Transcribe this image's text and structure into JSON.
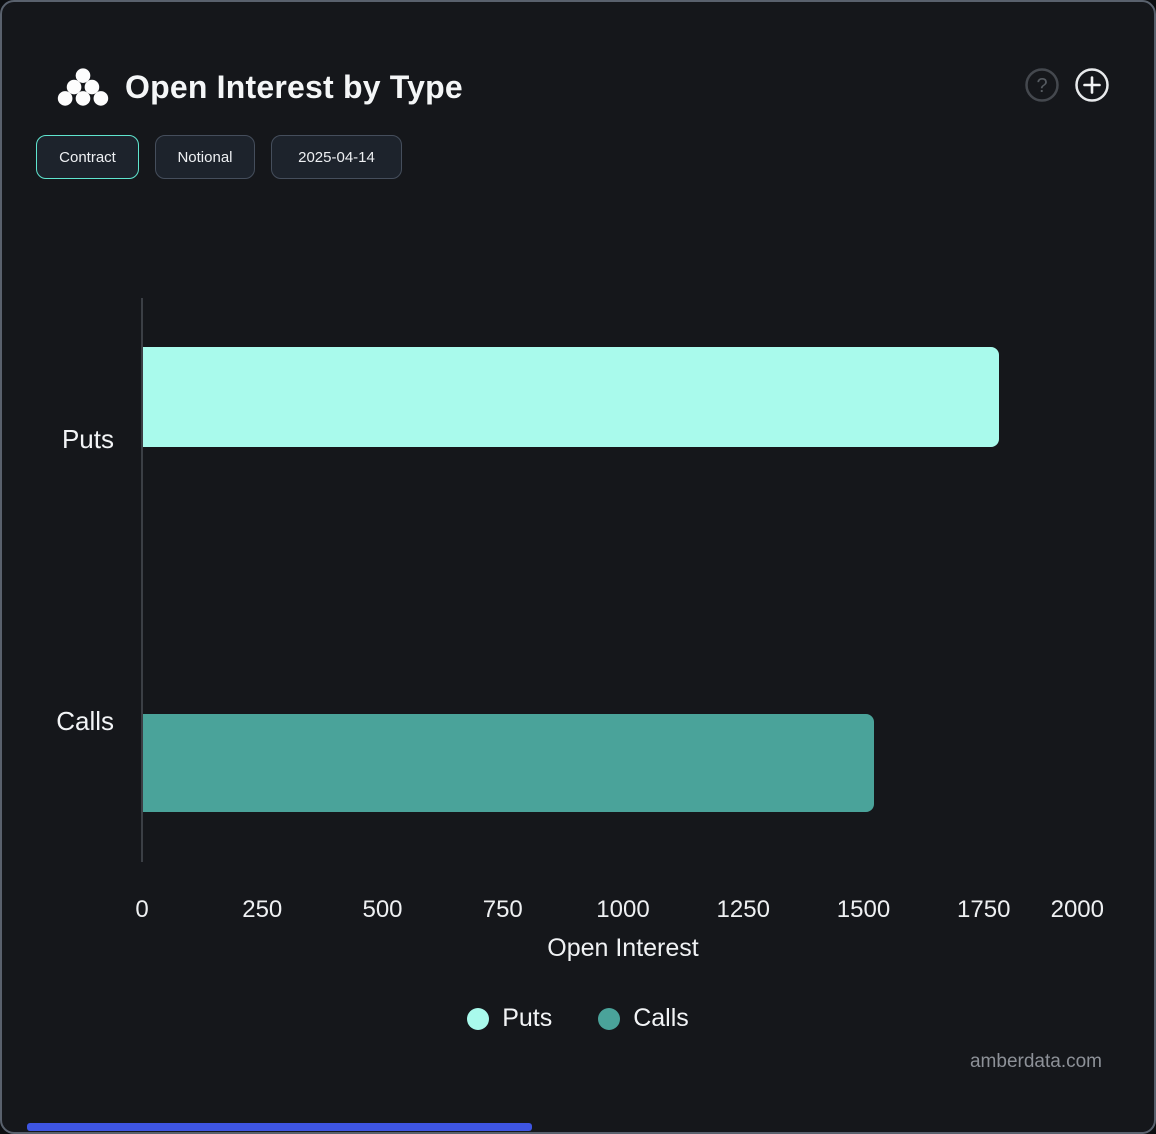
{
  "header": {
    "title": "Open Interest by Type"
  },
  "toolbar": {
    "buttons": [
      {
        "label": "Contract",
        "active": true
      },
      {
        "label": "Notional",
        "active": false
      },
      {
        "label": "2025-04-14",
        "active": false
      }
    ]
  },
  "chart_data": {
    "type": "bar",
    "orientation": "horizontal",
    "title": "Open Interest by Type",
    "categories": [
      "Puts",
      "Calls"
    ],
    "values": [
      1780,
      1520
    ],
    "xlabel": "Open Interest",
    "xlim": [
      0,
      2000
    ],
    "xticks": [
      0,
      250,
      500,
      750,
      1000,
      1250,
      1500,
      1750,
      2000
    ],
    "bar_colors": [
      "#A9FAEC",
      "#4AA39A"
    ],
    "legend": [
      {
        "label": "Puts",
        "color": "#A9FAEC"
      },
      {
        "label": "Calls",
        "color": "#4AA39A"
      }
    ],
    "legend_position": "bottom",
    "grid": false
  },
  "footer": {
    "watermark": "amberdata.com"
  },
  "colors": {
    "accent_active": "#5FE5CF",
    "panel_border": "#59616D",
    "panel_background": "#15171B",
    "bottom_bar": "#3E55E2"
  }
}
